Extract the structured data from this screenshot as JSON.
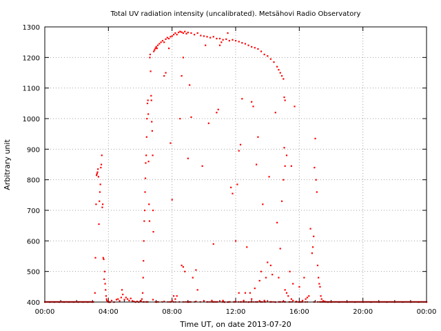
{
  "chart_data": {
    "type": "scatter",
    "title": "Total UV radiation intensity (uncalibrated). Metsähovi Radio Observatory",
    "xlabel": "Time UT, on date 2013-07-20",
    "ylabel": "Arbitrary unit",
    "xlim_hours": [
      0,
      24
    ],
    "ylim": [
      400,
      1300
    ],
    "x_ticks": [
      {
        "value": 0,
        "label": "00:00"
      },
      {
        "value": 4,
        "label": "04:00"
      },
      {
        "value": 8,
        "label": "08:00"
      },
      {
        "value": 12,
        "label": "12:00"
      },
      {
        "value": 16,
        "label": "16:00"
      },
      {
        "value": 20,
        "label": "20:00"
      },
      {
        "value": 24,
        "label": "00:00"
      }
    ],
    "y_ticks": [
      {
        "value": 400,
        "label": "400"
      },
      {
        "value": 500,
        "label": "500"
      },
      {
        "value": 600,
        "label": "600"
      },
      {
        "value": 700,
        "label": "700"
      },
      {
        "value": 800,
        "label": "800"
      },
      {
        "value": 900,
        "label": "900"
      },
      {
        "value": 1000,
        "label": "1000"
      },
      {
        "value": 1100,
        "label": "1100"
      },
      {
        "value": 1200,
        "label": "1200"
      },
      {
        "value": 1300,
        "label": "1300"
      }
    ],
    "grid": true,
    "marker_color": "#ff0000",
    "series": [
      {
        "points": [
          [
            0.0,
            400
          ],
          [
            0.3,
            400
          ],
          [
            0.6,
            400
          ],
          [
            0.9,
            400
          ],
          [
            1.2,
            400
          ],
          [
            1.5,
            400
          ],
          [
            1.8,
            400
          ],
          [
            2.1,
            400
          ],
          [
            2.4,
            400
          ],
          [
            2.7,
            400
          ],
          [
            3.0,
            400
          ],
          [
            3.15,
            430
          ],
          [
            3.18,
            545
          ],
          [
            3.22,
            720
          ],
          [
            3.25,
            815
          ],
          [
            3.28,
            820
          ],
          [
            3.31,
            825
          ],
          [
            3.34,
            835
          ],
          [
            3.37,
            810
          ],
          [
            3.4,
            655
          ],
          [
            3.43,
            730
          ],
          [
            3.46,
            760
          ],
          [
            3.49,
            785
          ],
          [
            3.52,
            840
          ],
          [
            3.55,
            850
          ],
          [
            3.58,
            880
          ],
          [
            3.61,
            710
          ],
          [
            3.64,
            720
          ],
          [
            3.67,
            545
          ],
          [
            3.7,
            540
          ],
          [
            3.73,
            475
          ],
          [
            3.76,
            500
          ],
          [
            3.79,
            460
          ],
          [
            3.82,
            440
          ],
          [
            3.85,
            420
          ],
          [
            3.88,
            410
          ],
          [
            3.9,
            405
          ],
          [
            3.95,
            402
          ],
          [
            4.0,
            400
          ],
          [
            4.05,
            400
          ],
          [
            4.1,
            400
          ],
          [
            4.2,
            405
          ],
          [
            4.35,
            400
          ],
          [
            4.5,
            408
          ],
          [
            4.6,
            410
          ],
          [
            4.7,
            404
          ],
          [
            4.8,
            415
          ],
          [
            4.85,
            440
          ],
          [
            4.9,
            425
          ],
          [
            5.0,
            408
          ],
          [
            5.1,
            415
          ],
          [
            5.2,
            410
          ],
          [
            5.3,
            405
          ],
          [
            5.4,
            412
          ],
          [
            5.5,
            404
          ],
          [
            5.6,
            402
          ],
          [
            5.7,
            400
          ],
          [
            5.8,
            402
          ],
          [
            5.9,
            400
          ],
          [
            6.0,
            402
          ],
          [
            6.05,
            404
          ],
          [
            6.1,
            410
          ],
          [
            6.15,
            430
          ],
          [
            6.18,
            480
          ],
          [
            6.2,
            535
          ],
          [
            6.22,
            600
          ],
          [
            6.25,
            665
          ],
          [
            6.28,
            700
          ],
          [
            6.3,
            760
          ],
          [
            6.32,
            805
          ],
          [
            6.34,
            855
          ],
          [
            6.37,
            880
          ],
          [
            6.4,
            940
          ],
          [
            6.42,
            1000
          ],
          [
            6.45,
            1050
          ],
          [
            6.48,
            1060
          ],
          [
            6.5,
            1015
          ],
          [
            6.52,
            860
          ],
          [
            6.55,
            720
          ],
          [
            6.58,
            665
          ],
          [
            6.6,
            1200
          ],
          [
            6.62,
            1210
          ],
          [
            6.65,
            1155
          ],
          [
            6.68,
            1075
          ],
          [
            6.7,
            1060
          ],
          [
            6.72,
            990
          ],
          [
            6.75,
            960
          ],
          [
            6.78,
            880
          ],
          [
            6.8,
            700
          ],
          [
            6.82,
            630
          ],
          [
            6.85,
            1220
          ],
          [
            6.9,
            1225
          ],
          [
            6.95,
            1230
          ],
          [
            7.0,
            1235
          ],
          [
            7.05,
            1230
          ],
          [
            7.1,
            1240
          ],
          [
            7.2,
            1245
          ],
          [
            7.3,
            1250
          ],
          [
            7.4,
            1255
          ],
          [
            7.5,
            1250
          ],
          [
            7.6,
            1260
          ],
          [
            7.7,
            1265
          ],
          [
            7.8,
            1262
          ],
          [
            7.9,
            1268
          ],
          [
            8.0,
            1270
          ],
          [
            8.1,
            1275
          ],
          [
            8.2,
            1280
          ],
          [
            8.3,
            1275
          ],
          [
            8.4,
            1282
          ],
          [
            8.5,
            1285
          ],
          [
            8.6,
            1283
          ],
          [
            8.7,
            1280
          ],
          [
            8.8,
            1285
          ],
          [
            8.9,
            1278
          ],
          [
            9.0,
            1282
          ],
          [
            9.2,
            1280
          ],
          [
            9.4,
            1275
          ],
          [
            9.6,
            1280
          ],
          [
            9.8,
            1272
          ],
          [
            10.0,
            1270
          ],
          [
            10.2,
            1268
          ],
          [
            10.4,
            1265
          ],
          [
            10.6,
            1268
          ],
          [
            10.8,
            1262
          ],
          [
            11.0,
            1262
          ],
          [
            11.2,
            1258
          ],
          [
            11.4,
            1260
          ],
          [
            11.6,
            1255
          ],
          [
            11.8,
            1258
          ],
          [
            12.0,
            1255
          ],
          [
            12.2,
            1252
          ],
          [
            12.4,
            1248
          ],
          [
            12.6,
            1245
          ],
          [
            12.8,
            1240
          ],
          [
            13.0,
            1235
          ],
          [
            13.2,
            1232
          ],
          [
            13.4,
            1228
          ],
          [
            13.6,
            1220
          ],
          [
            13.8,
            1210
          ],
          [
            14.0,
            1205
          ],
          [
            14.2,
            1195
          ],
          [
            14.4,
            1185
          ],
          [
            14.6,
            1170
          ],
          [
            14.7,
            1160
          ],
          [
            14.8,
            1150
          ],
          [
            14.9,
            1140
          ],
          [
            15.0,
            1130
          ],
          [
            15.05,
            1070
          ],
          [
            15.1,
            1060
          ],
          [
            7.5,
            1140
          ],
          [
            7.6,
            1150
          ],
          [
            7.8,
            1230
          ],
          [
            7.9,
            920
          ],
          [
            8.0,
            735
          ],
          [
            8.1,
            420
          ],
          [
            8.2,
            410
          ],
          [
            8.5,
            1000
          ],
          [
            8.6,
            1140
          ],
          [
            8.7,
            1200
          ],
          [
            8.6,
            520
          ],
          [
            8.7,
            515
          ],
          [
            8.8,
            500
          ],
          [
            9.0,
            870
          ],
          [
            9.1,
            1110
          ],
          [
            9.2,
            1005
          ],
          [
            9.3,
            480
          ],
          [
            9.5,
            505
          ],
          [
            9.6,
            440
          ],
          [
            9.9,
            845
          ],
          [
            10.1,
            1240
          ],
          [
            10.3,
            985
          ],
          [
            10.6,
            590
          ],
          [
            10.8,
            1020
          ],
          [
            10.9,
            1030
          ],
          [
            11.0,
            1240
          ],
          [
            11.1,
            1250
          ],
          [
            11.3,
            400
          ],
          [
            11.5,
            1280
          ],
          [
            11.7,
            775
          ],
          [
            11.8,
            755
          ],
          [
            12.0,
            600
          ],
          [
            12.1,
            785
          ],
          [
            12.2,
            895
          ],
          [
            12.3,
            915
          ],
          [
            12.4,
            1065
          ],
          [
            12.6,
            430
          ],
          [
            12.8,
            400
          ],
          [
            13.0,
            1055
          ],
          [
            13.1,
            1040
          ],
          [
            13.3,
            850
          ],
          [
            13.4,
            940
          ],
          [
            13.6,
            500
          ],
          [
            13.7,
            720
          ],
          [
            13.8,
            405
          ],
          [
            14.0,
            530
          ],
          [
            14.1,
            810
          ],
          [
            14.2,
            520
          ],
          [
            14.5,
            1020
          ],
          [
            14.6,
            660
          ],
          [
            14.8,
            575
          ],
          [
            14.9,
            730
          ],
          [
            15.0,
            800
          ],
          [
            15.05,
            905
          ],
          [
            15.1,
            845
          ],
          [
            15.2,
            880
          ],
          [
            15.4,
            500
          ],
          [
            15.5,
            845
          ],
          [
            15.7,
            1040
          ],
          [
            15.1,
            440
          ],
          [
            15.2,
            430
          ],
          [
            15.3,
            420
          ],
          [
            15.5,
            410
          ],
          [
            15.6,
            405
          ],
          [
            15.8,
            402
          ],
          [
            16.0,
            400
          ],
          [
            16.2,
            405
          ],
          [
            16.4,
            410
          ],
          [
            16.5,
            415
          ],
          [
            16.6,
            420
          ],
          [
            16.7,
            640
          ],
          [
            16.8,
            560
          ],
          [
            16.85,
            580
          ],
          [
            16.9,
            615
          ],
          [
            16.95,
            840
          ],
          [
            17.0,
            935
          ],
          [
            17.05,
            800
          ],
          [
            17.1,
            760
          ],
          [
            17.15,
            520
          ],
          [
            17.2,
            480
          ],
          [
            17.25,
            460
          ],
          [
            17.3,
            450
          ],
          [
            17.35,
            420
          ],
          [
            17.4,
            410
          ],
          [
            17.5,
            404
          ],
          [
            17.6,
            402
          ],
          [
            17.8,
            400
          ],
          [
            18.0,
            400
          ],
          [
            18.5,
            400
          ],
          [
            19.0,
            400
          ],
          [
            19.5,
            400
          ],
          [
            20.0,
            400
          ],
          [
            20.5,
            400
          ],
          [
            21.0,
            400
          ],
          [
            21.5,
            400
          ],
          [
            22.0,
            400
          ],
          [
            22.5,
            400
          ],
          [
            23.0,
            400
          ],
          [
            23.5,
            400
          ],
          [
            24.0,
            400
          ],
          [
            9.0,
            400
          ],
          [
            9.5,
            402
          ],
          [
            10.0,
            404
          ],
          [
            10.5,
            405
          ],
          [
            11.0,
            402
          ],
          [
            11.5,
            400
          ],
          [
            12.0,
            402
          ],
          [
            12.5,
            405
          ],
          [
            13.0,
            410
          ],
          [
            13.5,
            404
          ],
          [
            14.0,
            402
          ],
          [
            14.5,
            400
          ],
          [
            15.0,
            402
          ],
          [
            7.0,
            400
          ],
          [
            7.5,
            402
          ],
          [
            8.0,
            405
          ],
          [
            8.3,
            420
          ],
          [
            6.8,
            408
          ],
          [
            12.2,
            430
          ],
          [
            13.2,
            445
          ],
          [
            13.5,
            470
          ],
          [
            13.9,
            480
          ],
          [
            14.3,
            490
          ],
          [
            14.7,
            480
          ],
          [
            15.6,
            460
          ],
          [
            16.0,
            450
          ],
          [
            16.3,
            480
          ],
          [
            12.7,
            580
          ],
          [
            12.9,
            430
          ],
          [
            11.2,
            405
          ]
        ]
      }
    ]
  }
}
